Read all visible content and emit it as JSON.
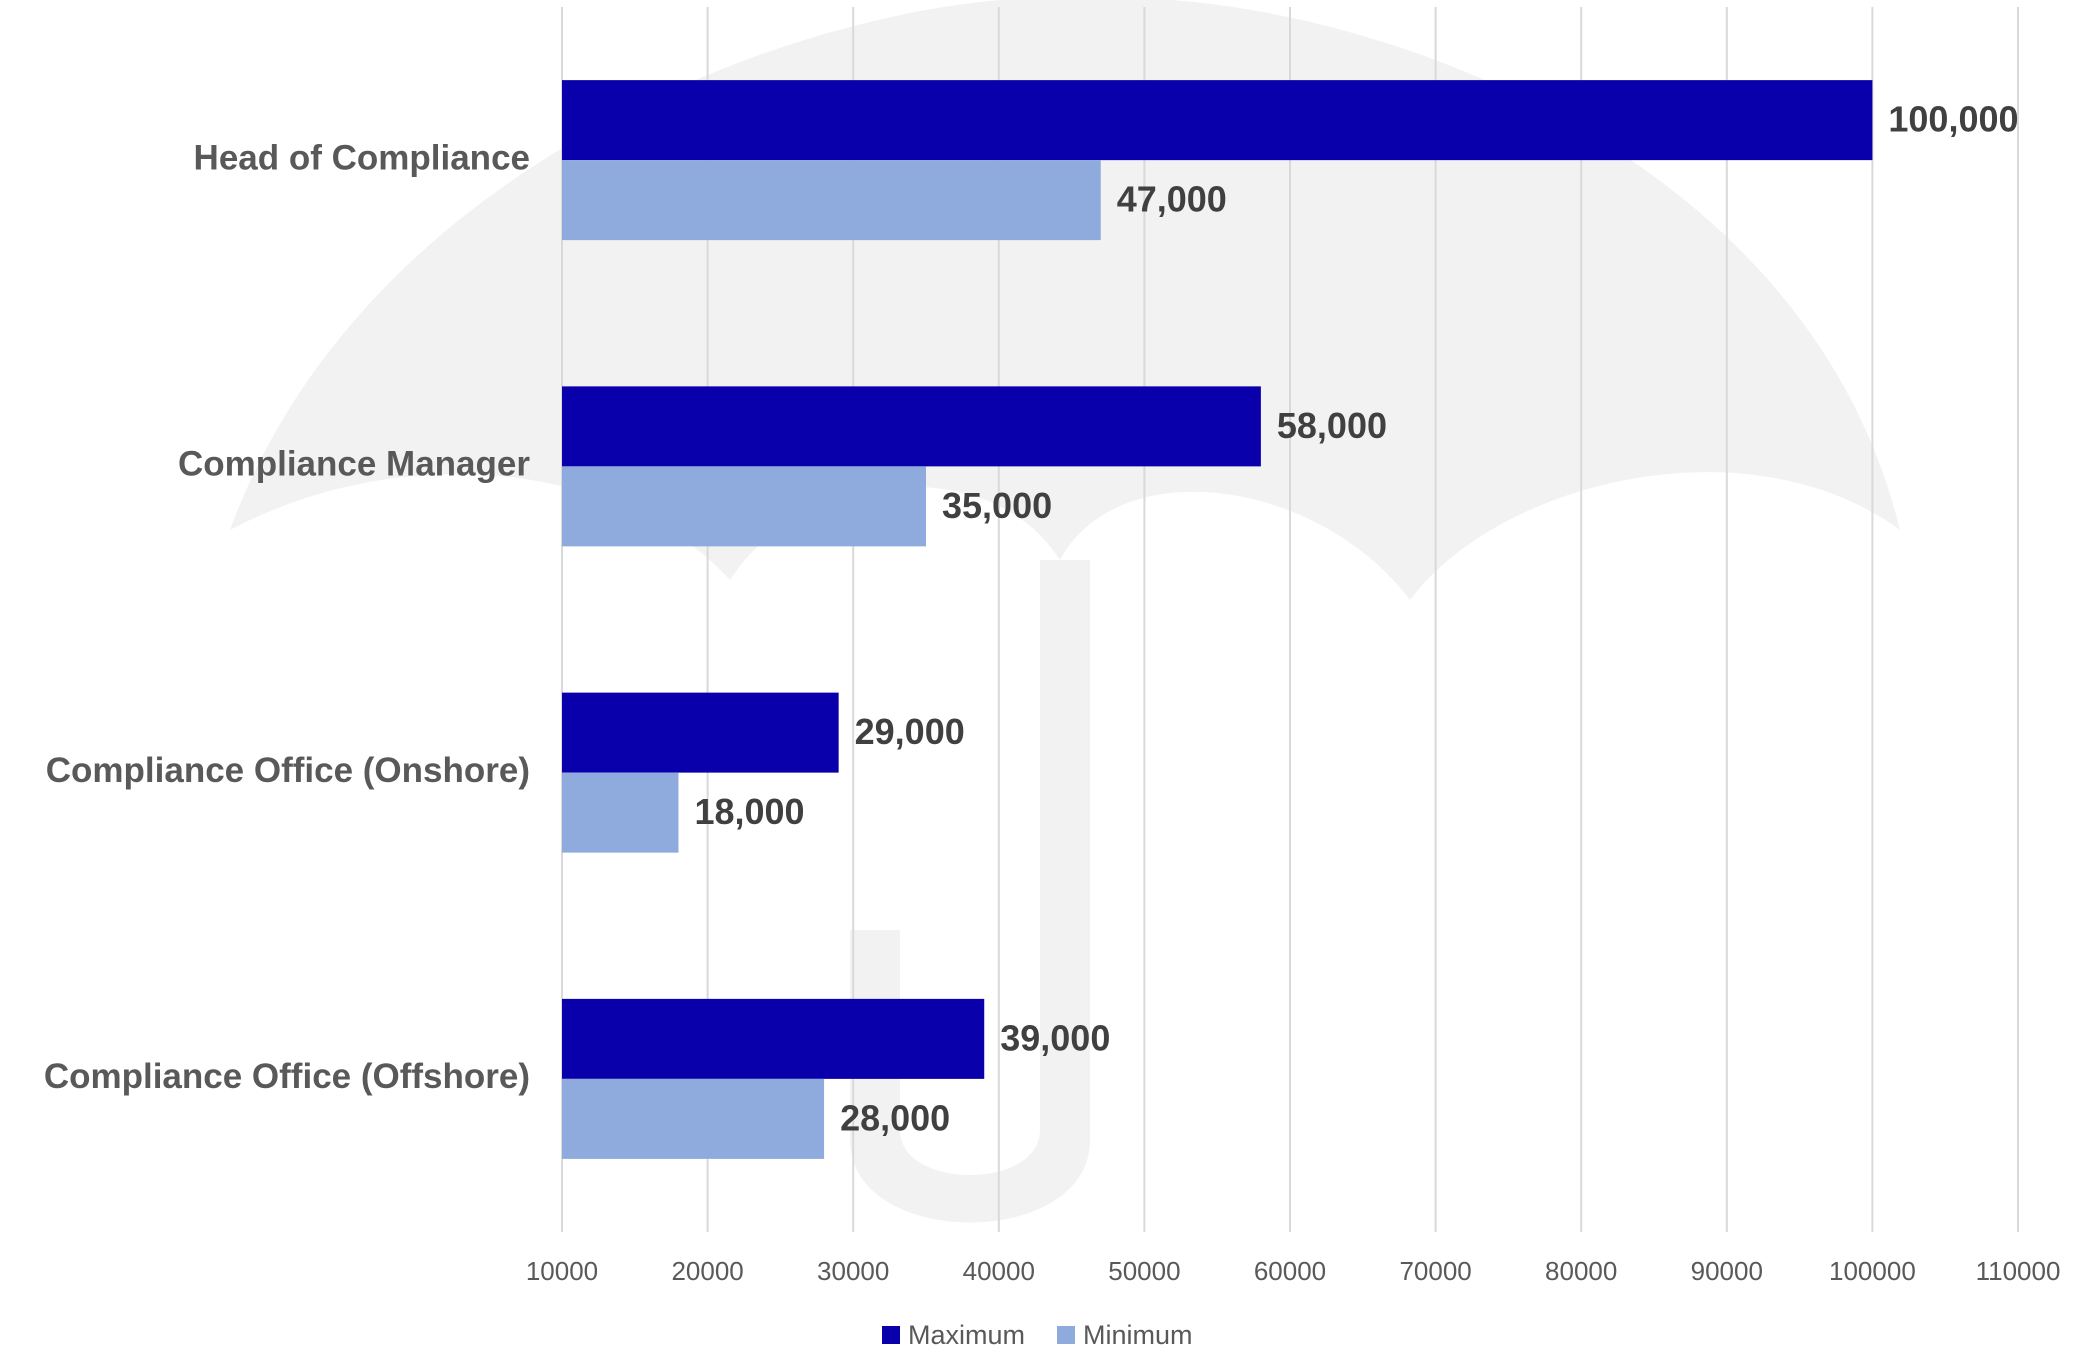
{
  "chart_data": {
    "type": "hbar",
    "categories": [
      "Head of Compliance",
      "Compliance Manager",
      "Compliance Office (Onshore)",
      "Compliance Office (Offshore)"
    ],
    "series": [
      {
        "name": "Maximum",
        "color": "#0a00ab",
        "values": [
          100000,
          58000,
          29000,
          39000
        ],
        "value_labels": [
          "100,000",
          "58,000",
          "29,000",
          "39,000"
        ]
      },
      {
        "name": "Minimum",
        "color": "#8faadc",
        "values": [
          47000,
          35000,
          18000,
          28000
        ],
        "value_labels": [
          "47,000",
          "35,000",
          "18,000",
          "28,000"
        ]
      }
    ],
    "xlim": [
      10000,
      110000
    ],
    "xticks": [
      10000,
      20000,
      30000,
      40000,
      50000,
      60000,
      70000,
      80000,
      90000,
      100000,
      110000
    ],
    "grid": true,
    "legend": "bottom"
  }
}
